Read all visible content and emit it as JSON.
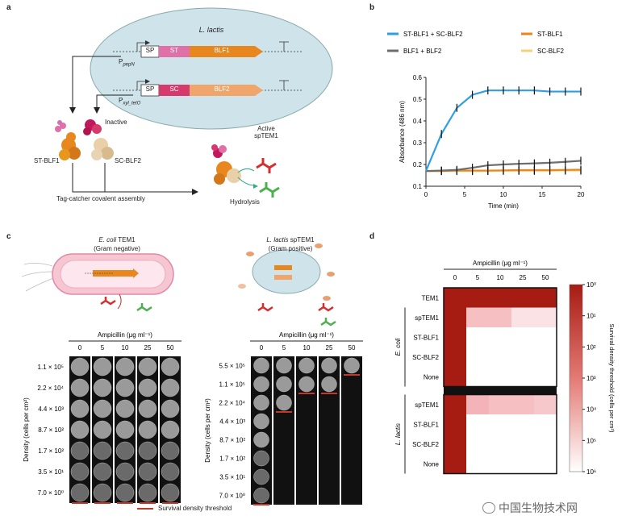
{
  "panels": {
    "a": "a",
    "b": "b",
    "c": "c",
    "d": "d"
  },
  "panel_a": {
    "organism": "L. lactis",
    "construct1": {
      "sp": "SP",
      "tag": "ST",
      "gene": "BLF1",
      "promoter": "P",
      "promoter_sub": "pepN"
    },
    "construct2": {
      "sp": "SP",
      "tag": "SC",
      "gene": "BLF2",
      "promoter": "P",
      "promoter_sub": "xyl_tetO"
    },
    "inactive": "Inactive",
    "st_blf1": "ST-BLF1",
    "sc_blf2": "SC-BLF2",
    "assembly": "Tag-catcher covalent assembly",
    "active_line1": "Active",
    "active_line2": "spTEM1",
    "hydrolysis": "Hydrolysis"
  },
  "chart_data": {
    "type": "line",
    "x": [
      0,
      2,
      4,
      6,
      8,
      10,
      12,
      14,
      16,
      18,
      20
    ],
    "series": [
      {
        "name": "ST-BLF1 + SC-BLF2",
        "color": "#2f9fe0",
        "values": [
          0.17,
          0.34,
          0.46,
          0.52,
          0.54,
          0.54,
          0.54,
          0.54,
          0.535,
          0.535,
          0.535
        ]
      },
      {
        "name": "BLF1 + BLF2",
        "color": "#6d6d6d",
        "values": [
          0.17,
          0.172,
          0.175,
          0.185,
          0.196,
          0.2,
          0.203,
          0.205,
          0.208,
          0.212,
          0.217
        ]
      },
      {
        "name": "ST-BLF1",
        "color": "#e8871e",
        "values": [
          0.17,
          0.17,
          0.172,
          0.172,
          0.172,
          0.173,
          0.174,
          0.174,
          0.174,
          0.175,
          0.176
        ]
      },
      {
        "name": "SC-BLF2",
        "color": "#f5d27a",
        "values": [
          0.17,
          0.17,
          0.17,
          0.17,
          0.17,
          0.171,
          0.171,
          0.171,
          0.171,
          0.172,
          0.172
        ]
      }
    ],
    "xlabel": "Time (min)",
    "ylabel": "Absorbance (486 nm)",
    "xlim": [
      0,
      20
    ],
    "ylim": [
      0.1,
      0.6
    ],
    "xticks": [
      0,
      5,
      10,
      15,
      20
    ],
    "yticks": [
      0.1,
      0.2,
      0.3,
      0.4,
      0.5,
      0.6
    ],
    "legend_placement": "top",
    "grid": false
  },
  "panel_c": {
    "left_title_ital": "E. coli",
    "left_title_rest": " TEM1",
    "left_sub": "(Gram negative)",
    "right_title_ital": "L. lactis",
    "right_title_rest": " spTEM1",
    "right_sub": "(Gram positive)",
    "amp_label": "Ampicillin (μg ml⁻¹)",
    "concentrations": [
      "0",
      "5",
      "10",
      "25",
      "50"
    ],
    "density_axis": "Density (cells per cm²)",
    "left_densities": [
      "1.1 × 10⁵",
      "2.2 × 10⁴",
      "4.4 × 10³",
      "8.7 × 10²",
      "1.7 × 10²",
      "3.5 × 10¹",
      "7.0 × 10⁰"
    ],
    "right_densities": [
      "5.5 × 10⁵",
      "1.1 × 10⁵",
      "2.2 × 10⁴",
      "4.4 × 10³",
      "8.7 × 10²",
      "1.7 × 10²",
      "3.5 × 10¹",
      "7.0 × 10⁰"
    ],
    "left_threshold_rows": [
      7,
      7,
      7,
      7,
      7
    ],
    "right_threshold_rows": [
      8,
      3,
      2,
      2,
      1
    ],
    "legend": "Survival density threshold",
    "threshold_color": "#c0392b"
  },
  "panel_d": {
    "amp_label": "Ampicillin (μg ml⁻¹)",
    "concentrations": [
      "0",
      "5",
      "10",
      "25",
      "50"
    ],
    "ecoli_label": "E. coli",
    "lactis_label": "L. lactis",
    "ecoli_rows": [
      "TEM1",
      "spTEM1",
      "ST-BLF1",
      "SC-BLF2",
      "None"
    ],
    "lactis_rows": [
      "spTEM1",
      "ST-BLF1",
      "SC-BLF2",
      "None"
    ],
    "colorbar_label": "Survival density threshold (cells per cm²)",
    "colorbar_ticks": [
      "10⁰",
      "10¹",
      "10²",
      "10³",
      "10⁴",
      "10⁵",
      "10⁶"
    ],
    "dark_color": "#a61b12"
  },
  "watermark": "中国生物技术网"
}
